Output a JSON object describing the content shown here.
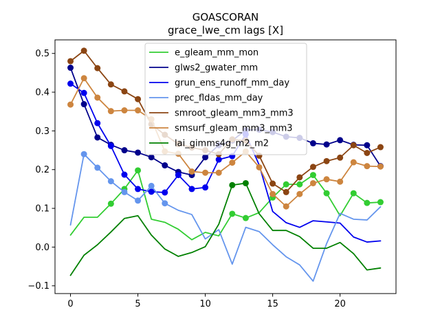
{
  "chart_data": {
    "type": "line",
    "title": "GOASCORAN",
    "subtitle": "grace_lwe_cm lags [X]",
    "xlabel": "",
    "ylabel": "",
    "xlim": [
      -1.15,
      24.15
    ],
    "ylim": [
      -0.12,
      0.535
    ],
    "x_ticks": [
      0,
      5,
      10,
      15,
      20
    ],
    "y_ticks": [
      -0.1,
      0.0,
      0.1,
      0.2,
      0.3,
      0.4,
      0.5
    ],
    "x_tick_labels": [
      "0",
      "5",
      "10",
      "15",
      "20"
    ],
    "y_tick_labels": [
      "−0.1",
      "0.0",
      "0.1",
      "0.2",
      "0.3",
      "0.4",
      "0.5"
    ],
    "grid": false,
    "legend_position": "top-center",
    "x": [
      0,
      1,
      2,
      3,
      4,
      5,
      6,
      7,
      8,
      9,
      10,
      11,
      12,
      13,
      14,
      15,
      16,
      17,
      18,
      19,
      20,
      21,
      22,
      23
    ],
    "series": [
      {
        "name": "e_gleam_mm_mon",
        "color": "#32cd32",
        "values": [
          0.031,
          0.077,
          0.077,
          0.112,
          0.15,
          0.198,
          0.072,
          0.064,
          0.046,
          0.019,
          0.038,
          0.029,
          0.086,
          0.075,
          0.089,
          0.128,
          0.162,
          0.162,
          0.186,
          0.139,
          0.081,
          0.139,
          0.114,
          0.116
        ],
        "markers": [
          3,
          4,
          5,
          12,
          13,
          15,
          16,
          17,
          18,
          19,
          21,
          22,
          23
        ]
      },
      {
        "name": "glws2_gwater_mm",
        "color": "#00008b",
        "values": [
          0.463,
          0.369,
          0.283,
          0.264,
          0.25,
          0.244,
          0.232,
          0.211,
          0.194,
          0.186,
          0.232,
          0.263,
          0.275,
          0.302,
          0.303,
          0.297,
          0.285,
          0.282,
          0.268,
          0.265,
          0.276,
          0.264,
          0.263,
          0.209
        ],
        "markers": [
          0,
          1,
          2,
          3,
          4,
          5,
          6,
          7,
          8,
          9,
          10,
          11,
          12,
          13,
          14,
          15,
          16,
          17,
          18,
          19,
          20,
          21,
          22,
          23
        ]
      },
      {
        "name": "grun_ens_runoff_mm_day",
        "color": "#0000ee",
        "values": [
          0.422,
          0.398,
          0.32,
          0.261,
          0.187,
          0.15,
          0.143,
          0.141,
          0.186,
          0.15,
          0.154,
          0.226,
          0.235,
          0.291,
          0.212,
          0.092,
          0.063,
          0.051,
          0.068,
          0.065,
          0.062,
          0.026,
          0.013,
          0.016
        ],
        "markers": [
          0,
          1,
          2,
          3,
          4,
          5,
          6,
          7,
          8,
          9,
          10,
          11,
          12,
          13
        ]
      },
      {
        "name": "prec_fldas_mm_day",
        "color": "#6495ed",
        "values": [
          0.057,
          0.24,
          0.205,
          0.17,
          0.142,
          0.12,
          0.158,
          0.113,
          0.095,
          0.084,
          0.021,
          0.045,
          -0.044,
          0.051,
          0.04,
          0.006,
          -0.025,
          -0.046,
          -0.088,
          0.009,
          0.087,
          0.072,
          0.07,
          0.104
        ],
        "markers": [
          1,
          2,
          3,
          4,
          5,
          6,
          7
        ]
      },
      {
        "name": "smroot_gleam_mm3_mm3",
        "color": "#8b4513",
        "values": [
          0.48,
          0.507,
          0.462,
          0.42,
          0.402,
          0.382,
          0.317,
          0.29,
          0.266,
          0.257,
          0.25,
          0.24,
          0.278,
          0.275,
          0.236,
          0.164,
          0.142,
          0.18,
          0.207,
          0.222,
          0.231,
          0.263,
          0.243,
          0.258
        ],
        "markers": [
          0,
          1,
          2,
          3,
          4,
          5,
          6,
          7,
          8,
          9,
          10,
          11,
          12,
          13,
          14,
          15,
          16,
          17,
          18,
          19,
          20,
          21,
          22,
          23
        ]
      },
      {
        "name": "smsurf_gleam_mm3_mm3",
        "color": "#cd853f",
        "values": [
          0.368,
          0.436,
          0.386,
          0.351,
          0.353,
          0.353,
          0.33,
          0.247,
          0.241,
          0.195,
          0.192,
          0.192,
          0.218,
          0.247,
          0.206,
          0.137,
          0.105,
          0.137,
          0.165,
          0.175,
          0.169,
          0.219,
          0.209,
          0.208
        ],
        "markers": [
          0,
          1,
          2,
          3,
          4,
          5,
          6,
          7,
          8,
          9,
          10,
          11,
          12,
          13,
          14,
          15,
          16,
          17,
          18,
          19,
          20,
          21,
          22,
          23
        ]
      },
      {
        "name": "lai_gimms4g_m2_m2",
        "color": "#008000",
        "values": [
          -0.073,
          -0.021,
          0.006,
          0.039,
          0.074,
          0.081,
          0.031,
          -0.005,
          -0.024,
          -0.014,
          0.001,
          0.059,
          0.16,
          0.165,
          0.086,
          0.043,
          0.043,
          0.027,
          -0.003,
          -0.003,
          0.012,
          -0.017,
          -0.059,
          -0.054
        ],
        "markers": [
          12,
          13
        ]
      }
    ]
  }
}
